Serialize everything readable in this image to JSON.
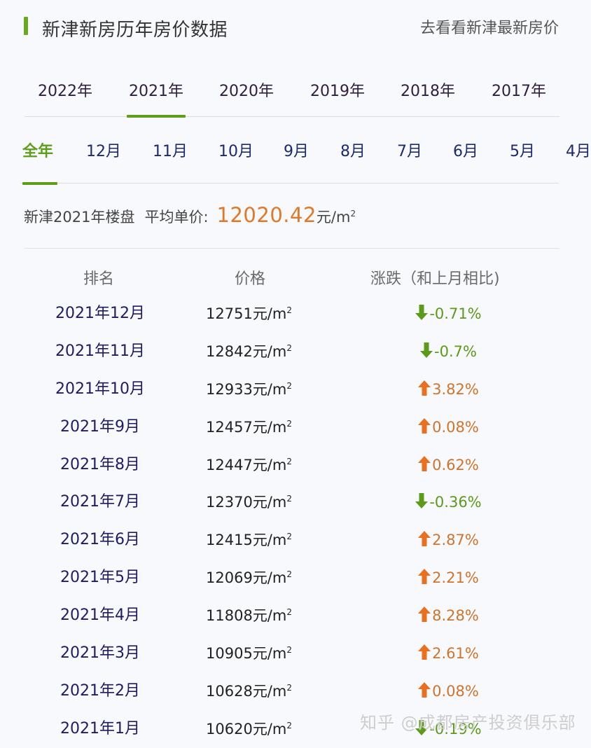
{
  "header": {
    "title": "新津新房历年房价数据",
    "link": "去看看新津最新房价"
  },
  "year_tabs": [
    {
      "label": "2022年",
      "active": false
    },
    {
      "label": "2021年",
      "active": true
    },
    {
      "label": "2020年",
      "active": false
    },
    {
      "label": "2019年",
      "active": false
    },
    {
      "label": "2018年",
      "active": false
    },
    {
      "label": "2017年",
      "active": false
    }
  ],
  "month_tabs": [
    {
      "label": "全年",
      "active": true
    },
    {
      "label": "12月",
      "active": false
    },
    {
      "label": "11月",
      "active": false
    },
    {
      "label": "10月",
      "active": false
    },
    {
      "label": "9月",
      "active": false
    },
    {
      "label": "8月",
      "active": false
    },
    {
      "label": "7月",
      "active": false
    },
    {
      "label": "6月",
      "active": false
    },
    {
      "label": "5月",
      "active": false
    },
    {
      "label": "4月",
      "active": false
    }
  ],
  "summary": {
    "label": "新津2021年楼盘",
    "avg_label": "平均单价:",
    "avg_value": "12020.42",
    "unit": "元/m",
    "unit_sup": "2"
  },
  "table": {
    "headers": [
      "排名",
      "价格",
      "涨跌（和上月相比)"
    ],
    "rows": [
      {
        "month": "2021年12月",
        "price": "12751",
        "change": "-0.71%",
        "direction": "down"
      },
      {
        "month": "2021年11月",
        "price": "12842",
        "change": "-0.7%",
        "direction": "down"
      },
      {
        "month": "2021年10月",
        "price": "12933",
        "change": "3.82%",
        "direction": "up"
      },
      {
        "month": "2021年9月",
        "price": "12457",
        "change": "0.08%",
        "direction": "up"
      },
      {
        "month": "2021年8月",
        "price": "12447",
        "change": "0.62%",
        "direction": "up"
      },
      {
        "month": "2021年7月",
        "price": "12370",
        "change": "-0.36%",
        "direction": "down"
      },
      {
        "month": "2021年6月",
        "price": "12415",
        "change": "2.87%",
        "direction": "up"
      },
      {
        "month": "2021年5月",
        "price": "12069",
        "change": "2.21%",
        "direction": "up"
      },
      {
        "month": "2021年4月",
        "price": "11808",
        "change": "8.28%",
        "direction": "up"
      },
      {
        "month": "2021年3月",
        "price": "10905",
        "change": "2.61%",
        "direction": "up"
      },
      {
        "month": "2021年2月",
        "price": "10628",
        "change": "0.08%",
        "direction": "up"
      },
      {
        "month": "2021年1月",
        "price": "10620",
        "change": "-0.19%",
        "direction": "down"
      }
    ],
    "unit": "元/m",
    "unit_sup": "2"
  },
  "watermark": "知乎 @成都房产投资俱乐部",
  "colors": {
    "accent_green": "#5e9e1a",
    "up_orange": "#e8701e",
    "down_green": "#5c9a1a",
    "avg_orange": "#e0782a",
    "month_text": "#1f1b66"
  }
}
